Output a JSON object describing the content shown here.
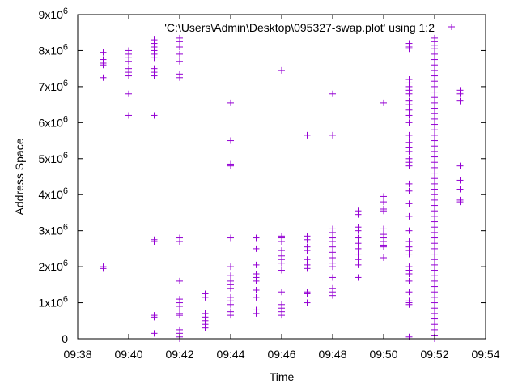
{
  "chart_data": {
    "type": "scatter",
    "title": "",
    "xlabel": "Time",
    "ylabel": "Address Space",
    "xlim": [
      "09:38",
      "09:54"
    ],
    "ylim": [
      0,
      9000000
    ],
    "x_ticks": [
      "09:38",
      "09:40",
      "09:42",
      "09:44",
      "09:46",
      "09:48",
      "09:50",
      "09:52",
      "09:54"
    ],
    "y_ticks": [
      {
        "value": 0,
        "mantissa": "0",
        "exp": ""
      },
      {
        "value": 1000000,
        "mantissa": "1x10",
        "exp": "6"
      },
      {
        "value": 2000000,
        "mantissa": "2x10",
        "exp": "6"
      },
      {
        "value": 3000000,
        "mantissa": "3x10",
        "exp": "6"
      },
      {
        "value": 4000000,
        "mantissa": "4x10",
        "exp": "6"
      },
      {
        "value": 5000000,
        "mantissa": "5x10",
        "exp": "6"
      },
      {
        "value": 6000000,
        "mantissa": "6x10",
        "exp": "6"
      },
      {
        "value": 7000000,
        "mantissa": "7x10",
        "exp": "6"
      },
      {
        "value": 8000000,
        "mantissa": "8x10",
        "exp": "6"
      },
      {
        "value": 9000000,
        "mantissa": "9x10",
        "exp": "6"
      }
    ],
    "grid": false,
    "legend_position": "top-right",
    "marker": "+",
    "series": [
      {
        "name": "'C:\\Users\\Admin\\Desktop\\095327-swap.plot' using 1:2",
        "color": "#9400d3",
        "points": [
          [
            "09:39",
            7950000
          ],
          [
            "09:39",
            7750000
          ],
          [
            "09:39",
            7650000
          ],
          [
            "09:39",
            7600000
          ],
          [
            "09:39",
            7250000
          ],
          [
            "09:39",
            2000000
          ],
          [
            "09:39",
            1950000
          ],
          [
            "09:40",
            8000000
          ],
          [
            "09:40",
            7900000
          ],
          [
            "09:40",
            7800000
          ],
          [
            "09:40",
            7700000
          ],
          [
            "09:40",
            7500000
          ],
          [
            "09:40",
            7400000
          ],
          [
            "09:40",
            7300000
          ],
          [
            "09:40",
            6800000
          ],
          [
            "09:40",
            6200000
          ],
          [
            "09:41",
            8300000
          ],
          [
            "09:41",
            8200000
          ],
          [
            "09:41",
            8100000
          ],
          [
            "09:41",
            8000000
          ],
          [
            "09:41",
            7900000
          ],
          [
            "09:41",
            7800000
          ],
          [
            "09:41",
            7500000
          ],
          [
            "09:41",
            7400000
          ],
          [
            "09:41",
            7300000
          ],
          [
            "09:41",
            6200000
          ],
          [
            "09:41",
            2750000
          ],
          [
            "09:41",
            2700000
          ],
          [
            "09:41",
            650000
          ],
          [
            "09:41",
            600000
          ],
          [
            "09:41",
            150000
          ],
          [
            "09:42",
            8350000
          ],
          [
            "09:42",
            8250000
          ],
          [
            "09:42",
            8100000
          ],
          [
            "09:42",
            7900000
          ],
          [
            "09:42",
            7700000
          ],
          [
            "09:42",
            7350000
          ],
          [
            "09:42",
            7250000
          ],
          [
            "09:42",
            2800000
          ],
          [
            "09:42",
            2700000
          ],
          [
            "09:42",
            1600000
          ],
          [
            "09:42",
            1100000
          ],
          [
            "09:42",
            1000000
          ],
          [
            "09:42",
            900000
          ],
          [
            "09:42",
            700000
          ],
          [
            "09:42",
            650000
          ],
          [
            "09:42",
            250000
          ],
          [
            "09:42",
            150000
          ],
          [
            "09:42",
            50000
          ],
          [
            "09:42",
            0
          ],
          [
            "09:43",
            1250000
          ],
          [
            "09:43",
            1150000
          ],
          [
            "09:43",
            700000
          ],
          [
            "09:43",
            600000
          ],
          [
            "09:43",
            500000
          ],
          [
            "09:43",
            400000
          ],
          [
            "09:43",
            300000
          ],
          [
            "09:44",
            6550000
          ],
          [
            "09:44",
            5500000
          ],
          [
            "09:44",
            4850000
          ],
          [
            "09:44",
            4800000
          ],
          [
            "09:44",
            2800000
          ],
          [
            "09:44",
            2000000
          ],
          [
            "09:44",
            1750000
          ],
          [
            "09:44",
            1600000
          ],
          [
            "09:44",
            1500000
          ],
          [
            "09:44",
            1400000
          ],
          [
            "09:44",
            1150000
          ],
          [
            "09:44",
            1050000
          ],
          [
            "09:44",
            950000
          ],
          [
            "09:44",
            750000
          ],
          [
            "09:44",
            650000
          ],
          [
            "09:45",
            2800000
          ],
          [
            "09:45",
            2500000
          ],
          [
            "09:45",
            2050000
          ],
          [
            "09:45",
            1800000
          ],
          [
            "09:45",
            1700000
          ],
          [
            "09:45",
            1600000
          ],
          [
            "09:45",
            1350000
          ],
          [
            "09:45",
            1150000
          ],
          [
            "09:45",
            800000
          ],
          [
            "09:45",
            700000
          ],
          [
            "09:46",
            7450000
          ],
          [
            "09:46",
            2850000
          ],
          [
            "09:46",
            2800000
          ],
          [
            "09:46",
            2700000
          ],
          [
            "09:46",
            2450000
          ],
          [
            "09:46",
            2300000
          ],
          [
            "09:46",
            2200000
          ],
          [
            "09:46",
            2100000
          ],
          [
            "09:46",
            1900000
          ],
          [
            "09:46",
            1300000
          ],
          [
            "09:46",
            950000
          ],
          [
            "09:46",
            850000
          ],
          [
            "09:46",
            750000
          ],
          [
            "09:46",
            650000
          ],
          [
            "09:47",
            5650000
          ],
          [
            "09:47",
            2850000
          ],
          [
            "09:47",
            2750000
          ],
          [
            "09:47",
            2550000
          ],
          [
            "09:47",
            2450000
          ],
          [
            "09:47",
            2200000
          ],
          [
            "09:47",
            2050000
          ],
          [
            "09:47",
            1950000
          ],
          [
            "09:47",
            1300000
          ],
          [
            "09:47",
            1250000
          ],
          [
            "09:47",
            1000000
          ],
          [
            "09:48",
            6800000
          ],
          [
            "09:48",
            5650000
          ],
          [
            "09:48",
            3050000
          ],
          [
            "09:48",
            2950000
          ],
          [
            "09:48",
            2800000
          ],
          [
            "09:48",
            2700000
          ],
          [
            "09:48",
            2550000
          ],
          [
            "09:48",
            2400000
          ],
          [
            "09:48",
            2250000
          ],
          [
            "09:48",
            2100000
          ],
          [
            "09:48",
            2000000
          ],
          [
            "09:48",
            1700000
          ],
          [
            "09:48",
            1400000
          ],
          [
            "09:48",
            1300000
          ],
          [
            "09:48",
            1200000
          ],
          [
            "09:49",
            3550000
          ],
          [
            "09:49",
            3450000
          ],
          [
            "09:49",
            3100000
          ],
          [
            "09:49",
            3000000
          ],
          [
            "09:49",
            2800000
          ],
          [
            "09:49",
            2650000
          ],
          [
            "09:49",
            2500000
          ],
          [
            "09:49",
            2350000
          ],
          [
            "09:49",
            2200000
          ],
          [
            "09:49",
            2050000
          ],
          [
            "09:49",
            1700000
          ],
          [
            "09:50",
            6550000
          ],
          [
            "09:50",
            3950000
          ],
          [
            "09:50",
            3800000
          ],
          [
            "09:50",
            3600000
          ],
          [
            "09:50",
            3550000
          ],
          [
            "09:50",
            3050000
          ],
          [
            "09:50",
            2900000
          ],
          [
            "09:50",
            2800000
          ],
          [
            "09:50",
            2700000
          ],
          [
            "09:50",
            2600000
          ],
          [
            "09:50",
            2550000
          ],
          [
            "09:50",
            2250000
          ],
          [
            "09:51",
            8200000
          ],
          [
            "09:51",
            8100000
          ],
          [
            "09:51",
            8050000
          ],
          [
            "09:51",
            7200000
          ],
          [
            "09:51",
            7100000
          ],
          [
            "09:51",
            7000000
          ],
          [
            "09:51",
            6900000
          ],
          [
            "09:51",
            6800000
          ],
          [
            "09:51",
            6600000
          ],
          [
            "09:51",
            6500000
          ],
          [
            "09:51",
            6350000
          ],
          [
            "09:51",
            6200000
          ],
          [
            "09:51",
            6000000
          ],
          [
            "09:51",
            5650000
          ],
          [
            "09:51",
            5450000
          ],
          [
            "09:51",
            5300000
          ],
          [
            "09:51",
            5200000
          ],
          [
            "09:51",
            5000000
          ],
          [
            "09:51",
            4900000
          ],
          [
            "09:51",
            4800000
          ],
          [
            "09:51",
            4300000
          ],
          [
            "09:51",
            4100000
          ],
          [
            "09:51",
            3750000
          ],
          [
            "09:51",
            3400000
          ],
          [
            "09:51",
            3000000
          ],
          [
            "09:51",
            2700000
          ],
          [
            "09:51",
            2550000
          ],
          [
            "09:51",
            2450000
          ],
          [
            "09:51",
            2350000
          ],
          [
            "09:51",
            2000000
          ],
          [
            "09:51",
            1900000
          ],
          [
            "09:51",
            1800000
          ],
          [
            "09:51",
            1600000
          ],
          [
            "09:51",
            1300000
          ],
          [
            "09:51",
            1050000
          ],
          [
            "09:51",
            1000000
          ],
          [
            "09:51",
            950000
          ],
          [
            "09:51",
            50000
          ],
          [
            "09:52",
            8350000
          ],
          [
            "09:52",
            8250000
          ],
          [
            "09:52",
            8150000
          ],
          [
            "09:52",
            8050000
          ],
          [
            "09:52",
            7900000
          ],
          [
            "09:52",
            7750000
          ],
          [
            "09:52",
            7600000
          ],
          [
            "09:52",
            7450000
          ],
          [
            "09:52",
            7300000
          ],
          [
            "09:52",
            7150000
          ],
          [
            "09:52",
            7000000
          ],
          [
            "09:52",
            6850000
          ],
          [
            "09:52",
            6700000
          ],
          [
            "09:52",
            6550000
          ],
          [
            "09:52",
            6400000
          ],
          [
            "09:52",
            6250000
          ],
          [
            "09:52",
            6100000
          ],
          [
            "09:52",
            5950000
          ],
          [
            "09:52",
            5800000
          ],
          [
            "09:52",
            5650000
          ],
          [
            "09:52",
            5500000
          ],
          [
            "09:52",
            5350000
          ],
          [
            "09:52",
            5200000
          ],
          [
            "09:52",
            5050000
          ],
          [
            "09:52",
            4900000
          ],
          [
            "09:52",
            4750000
          ],
          [
            "09:52",
            4600000
          ],
          [
            "09:52",
            4450000
          ],
          [
            "09:52",
            4300000
          ],
          [
            "09:52",
            4150000
          ],
          [
            "09:52",
            4000000
          ],
          [
            "09:52",
            3850000
          ],
          [
            "09:52",
            3700000
          ],
          [
            "09:52",
            3550000
          ],
          [
            "09:52",
            3400000
          ],
          [
            "09:52",
            3250000
          ],
          [
            "09:52",
            3100000
          ],
          [
            "09:52",
            2950000
          ],
          [
            "09:52",
            2800000
          ],
          [
            "09:52",
            2650000
          ],
          [
            "09:52",
            2500000
          ],
          [
            "09:52",
            2350000
          ],
          [
            "09:52",
            2200000
          ],
          [
            "09:52",
            2050000
          ],
          [
            "09:52",
            1900000
          ],
          [
            "09:52",
            1750000
          ],
          [
            "09:52",
            1600000
          ],
          [
            "09:52",
            1450000
          ],
          [
            "09:52",
            1300000
          ],
          [
            "09:52",
            1150000
          ],
          [
            "09:52",
            1000000
          ],
          [
            "09:52",
            850000
          ],
          [
            "09:52",
            700000
          ],
          [
            "09:52",
            550000
          ],
          [
            "09:52",
            400000
          ],
          [
            "09:52",
            250000
          ],
          [
            "09:52",
            100000
          ],
          [
            "09:52",
            0
          ],
          [
            "09:53",
            6900000
          ],
          [
            "09:53",
            6850000
          ],
          [
            "09:53",
            6800000
          ],
          [
            "09:53",
            6600000
          ],
          [
            "09:53",
            4800000
          ],
          [
            "09:53",
            4400000
          ],
          [
            "09:53",
            4150000
          ],
          [
            "09:53",
            3850000
          ],
          [
            "09:53",
            3800000
          ]
        ]
      }
    ]
  }
}
